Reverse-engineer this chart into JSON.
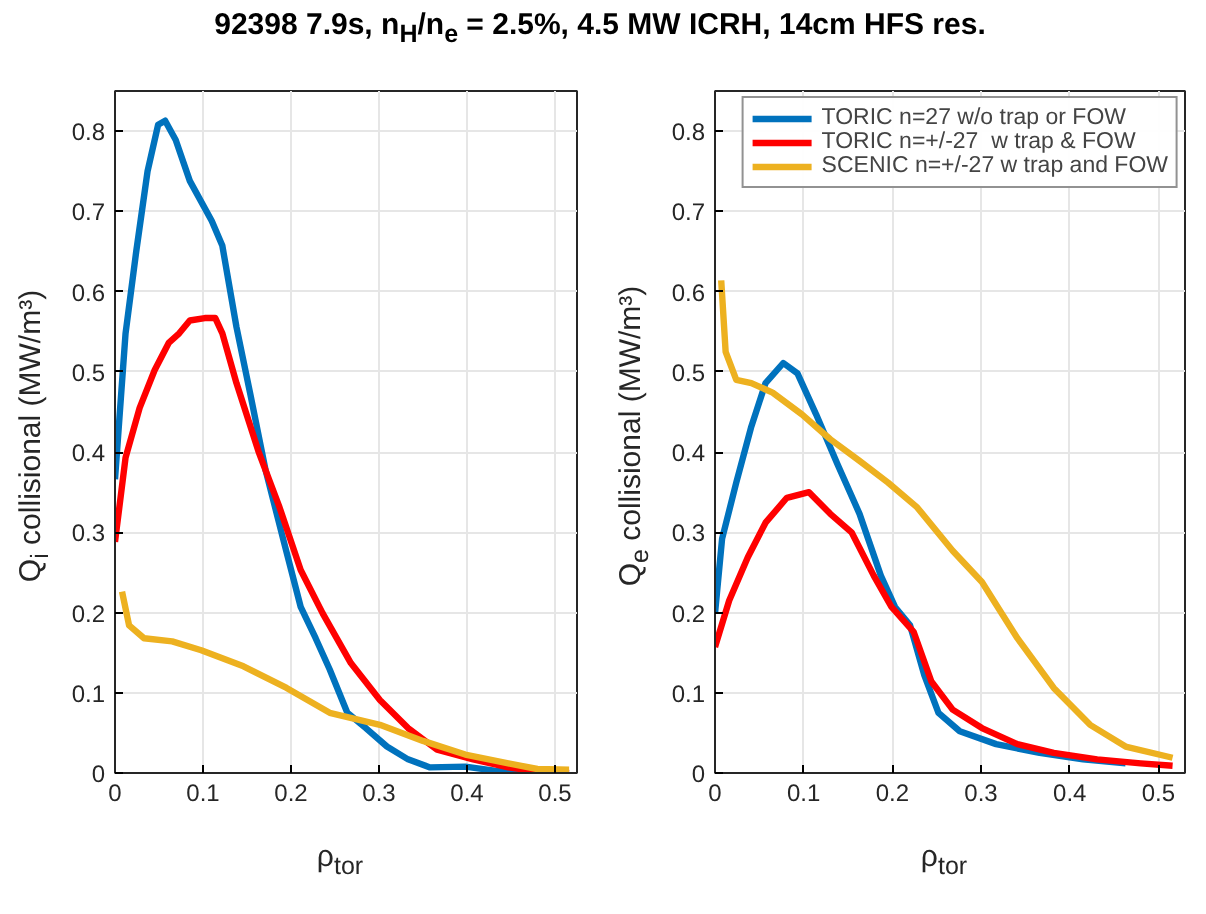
{
  "chart_data": [
    {
      "type": "line",
      "title": "92398 7.9s, n$_{H}$/n$_{e}$ = 2.5%, 4.5 MW ICRH, 14cm HFS res.",
      "xlabel": "ρ$_{tor}$",
      "ylabel": "Q$_{i}$ collisional (MW/m³)",
      "xlim": [
        0,
        0.525
      ],
      "ylim": [
        0,
        0.85
      ],
      "xticks": [
        0,
        0.1,
        0.2,
        0.3,
        0.4,
        0.5
      ],
      "yticks": [
        0,
        0.1,
        0.2,
        0.3,
        0.4,
        0.5,
        0.6,
        0.7,
        0.8
      ],
      "grid": true,
      "marker": "none",
      "line_style": "solid",
      "series": [
        {
          "color": "#0072bd",
          "x": [
            0,
            0.012,
            0.024,
            0.037,
            0.049,
            0.057,
            0.069,
            0.085,
            0.11,
            0.122,
            0.138,
            0.154,
            0.171,
            0.191,
            0.211,
            0.228,
            0.244,
            0.264,
            0.285,
            0.309,
            0.333,
            0.358,
            0.398,
            0.431,
            0.463,
            0.516
          ],
          "values": [
            0.366,
            0.548,
            0.649,
            0.75,
            0.808,
            0.813,
            0.789,
            0.738,
            0.688,
            0.657,
            0.556,
            0.471,
            0.378,
            0.292,
            0.207,
            0.168,
            0.129,
            0.075,
            0.056,
            0.033,
            0.017,
            0.007,
            0.008,
            0.003,
            0,
            0
          ]
        },
        {
          "color": "#ff0000",
          "x": [
            0,
            0.012,
            0.028,
            0.045,
            0.061,
            0.073,
            0.085,
            0.102,
            0.114,
            0.122,
            0.138,
            0.163,
            0.187,
            0.211,
            0.236,
            0.268,
            0.301,
            0.333,
            0.366,
            0.407,
            0.447,
            0.48,
            0.516
          ],
          "values": [
            0.288,
            0.393,
            0.455,
            0.502,
            0.536,
            0.548,
            0.564,
            0.567,
            0.567,
            0.548,
            0.486,
            0.401,
            0.331,
            0.253,
            0.199,
            0.137,
            0.091,
            0.056,
            0.029,
            0.017,
            0.007,
            0.002,
            0
          ]
        },
        {
          "color": "#edb120",
          "x": [
            0.008,
            0.016,
            0.033,
            0.065,
            0.098,
            0.146,
            0.195,
            0.244,
            0.301,
            0.35,
            0.398,
            0.447,
            0.48,
            0.516
          ],
          "values": [
            0.226,
            0.184,
            0.168,
            0.164,
            0.153,
            0.133,
            0.106,
            0.075,
            0.06,
            0.04,
            0.023,
            0.012,
            0.005,
            0.004
          ]
        }
      ]
    },
    {
      "type": "line",
      "xlabel": "ρ$_{tor}$",
      "ylabel": "Q$_{e}$ collisional (MW/m³)",
      "xlim": [
        0,
        0.53
      ],
      "ylim": [
        0,
        0.85
      ],
      "xticks": [
        0,
        0.1,
        0.2,
        0.3,
        0.4,
        0.5
      ],
      "yticks": [
        0,
        0.1,
        0.2,
        0.3,
        0.4,
        0.5,
        0.6,
        0.7,
        0.8
      ],
      "grid": true,
      "marker": "none",
      "line_style": "solid",
      "legend": "top right",
      "series": [
        {
          "name": "TORIC n=27 w/o trap or FOW",
          "color": "#0072bd",
          "x": [
            0,
            0.008,
            0.024,
            0.041,
            0.057,
            0.077,
            0.093,
            0.114,
            0.138,
            0.163,
            0.187,
            0.203,
            0.22,
            0.236,
            0.252,
            0.276,
            0.317,
            0.366,
            0.415,
            0.463
          ],
          "values": [
            0.199,
            0.292,
            0.362,
            0.432,
            0.486,
            0.511,
            0.498,
            0.447,
            0.385,
            0.323,
            0.246,
            0.207,
            0.184,
            0.122,
            0.075,
            0.052,
            0.036,
            0.025,
            0.017,
            0.012
          ]
        },
        {
          "name": "TORIC n=+/-27  w trap & FOW",
          "color": "#ff0000",
          "x": [
            0,
            0.016,
            0.037,
            0.057,
            0.081,
            0.106,
            0.13,
            0.154,
            0.179,
            0.199,
            0.224,
            0.244,
            0.268,
            0.301,
            0.341,
            0.382,
            0.431,
            0.48,
            0.516
          ],
          "values": [
            0.157,
            0.215,
            0.269,
            0.312,
            0.343,
            0.35,
            0.323,
            0.3,
            0.246,
            0.207,
            0.176,
            0.114,
            0.079,
            0.056,
            0.036,
            0.025,
            0.017,
            0.012,
            0.009
          ]
        },
        {
          "name": "SCENIC n=+/-27 w trap and FOW",
          "color": "#edb120",
          "x": [
            0.007,
            0.012,
            0.024,
            0.041,
            0.065,
            0.098,
            0.13,
            0.163,
            0.195,
            0.228,
            0.268,
            0.301,
            0.341,
            0.382,
            0.423,
            0.463,
            0.516
          ],
          "values": [
            0.614,
            0.525,
            0.49,
            0.486,
            0.474,
            0.447,
            0.416,
            0.389,
            0.362,
            0.331,
            0.277,
            0.238,
            0.168,
            0.106,
            0.06,
            0.033,
            0.019
          ]
        }
      ]
    }
  ]
}
